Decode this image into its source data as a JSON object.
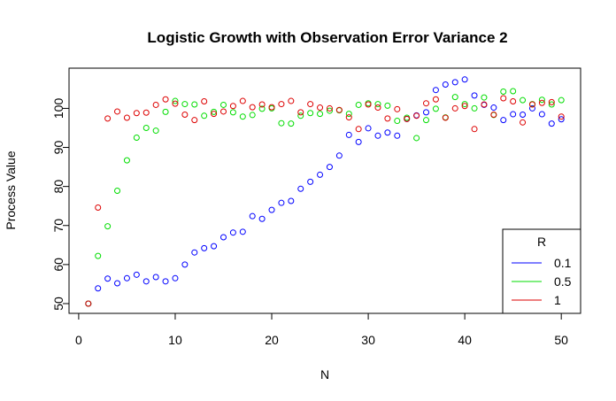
{
  "chart_data": {
    "type": "scatter",
    "title": "Logistic Growth with Observation Error Variance 2",
    "xlabel": "N",
    "ylabel": "Process Value",
    "xlim": [
      -1,
      52
    ],
    "ylim": [
      47.5,
      110.3
    ],
    "xticks": [
      0,
      10,
      20,
      30,
      40,
      50
    ],
    "xtick_labels": [
      "0",
      "10",
      "20",
      "30",
      "40",
      "50"
    ],
    "yticks": [
      50,
      60,
      70,
      80,
      90,
      100
    ],
    "ytick_labels": [
      "50",
      "60",
      "70",
      "80",
      "90",
      "100"
    ],
    "grid": false,
    "legend": {
      "title": "R",
      "placement": "bottom-right",
      "entries": [
        "0.1",
        "0.5",
        "1"
      ]
    },
    "series": [
      {
        "name": "0.1",
        "color": "#0000ff",
        "x": [
          1,
          2,
          3,
          4,
          5,
          6,
          7,
          8,
          9,
          10,
          11,
          12,
          13,
          14,
          15,
          16,
          17,
          18,
          19,
          20,
          21,
          22,
          23,
          24,
          25,
          26,
          27,
          28,
          29,
          30,
          31,
          32,
          33,
          34,
          35,
          36,
          37,
          38,
          39,
          40,
          41,
          42,
          43,
          44,
          45,
          46,
          47,
          48,
          49,
          50
        ],
        "y": [
          50.0,
          53.9,
          56.4,
          55.2,
          56.5,
          57.4,
          55.7,
          56.8,
          55.7,
          56.5,
          60.0,
          63.1,
          64.2,
          64.7,
          67.0,
          68.2,
          68.4,
          72.4,
          71.7,
          74.0,
          75.8,
          76.3,
          79.4,
          81.2,
          83.0,
          85.0,
          87.9,
          93.2,
          91.4,
          94.9,
          93.0,
          93.8,
          93.0,
          97.3,
          98.2,
          99.0,
          104.7,
          106.1,
          106.7,
          107.4,
          103.3,
          100.9,
          100.2,
          97.0,
          98.5,
          98.4,
          100.0,
          98.5,
          96.1,
          97.2
        ]
      },
      {
        "name": "0.5",
        "color": "#00dd00",
        "x": [
          1,
          2,
          3,
          4,
          5,
          6,
          7,
          8,
          9,
          10,
          11,
          12,
          13,
          14,
          15,
          16,
          17,
          18,
          19,
          20,
          21,
          22,
          23,
          24,
          25,
          26,
          27,
          28,
          29,
          30,
          31,
          32,
          33,
          34,
          35,
          36,
          37,
          38,
          39,
          40,
          41,
          42,
          43,
          44,
          45,
          46,
          47,
          48,
          49,
          50
        ],
        "y": [
          50.0,
          62.2,
          69.8,
          78.9,
          86.7,
          92.5,
          95.0,
          94.3,
          99.1,
          101.9,
          101.1,
          101.0,
          98.1,
          99.1,
          100.9,
          99.0,
          97.9,
          98.3,
          99.9,
          100.0,
          96.2,
          96.1,
          98.1,
          98.8,
          98.6,
          99.4,
          99.5,
          98.6,
          100.9,
          101.3,
          101.1,
          100.7,
          96.8,
          97.6,
          92.4,
          97.0,
          99.9,
          97.7,
          102.9,
          101.1,
          100.0,
          102.8,
          98.3,
          104.3,
          104.4,
          102.1,
          101.1,
          102.2,
          101.0,
          102.1
        ]
      },
      {
        "name": "1",
        "color": "#dd0000",
        "x": [
          1,
          2,
          3,
          4,
          5,
          6,
          7,
          8,
          9,
          10,
          11,
          12,
          13,
          14,
          15,
          16,
          17,
          18,
          19,
          20,
          21,
          22,
          23,
          24,
          25,
          26,
          27,
          28,
          29,
          30,
          31,
          32,
          33,
          34,
          35,
          36,
          37,
          38,
          39,
          40,
          41,
          42,
          43,
          44,
          45,
          46,
          47,
          48,
          49,
          50
        ],
        "y": [
          50.0,
          74.6,
          97.4,
          99.2,
          97.6,
          98.8,
          98.9,
          100.9,
          102.3,
          101.2,
          98.4,
          97.0,
          101.8,
          98.6,
          99.2,
          100.6,
          101.9,
          100.3,
          101.0,
          100.3,
          101.1,
          101.9,
          99.0,
          101.1,
          100.2,
          100.0,
          99.6,
          97.7,
          94.7,
          101.0,
          100.2,
          97.4,
          99.8,
          97.3,
          98.1,
          101.3,
          102.3,
          97.6,
          100.0,
          100.6,
          94.7,
          101.0,
          98.4,
          102.6,
          101.8,
          96.4,
          101.0,
          101.4,
          101.6,
          97.9
        ]
      }
    ]
  }
}
